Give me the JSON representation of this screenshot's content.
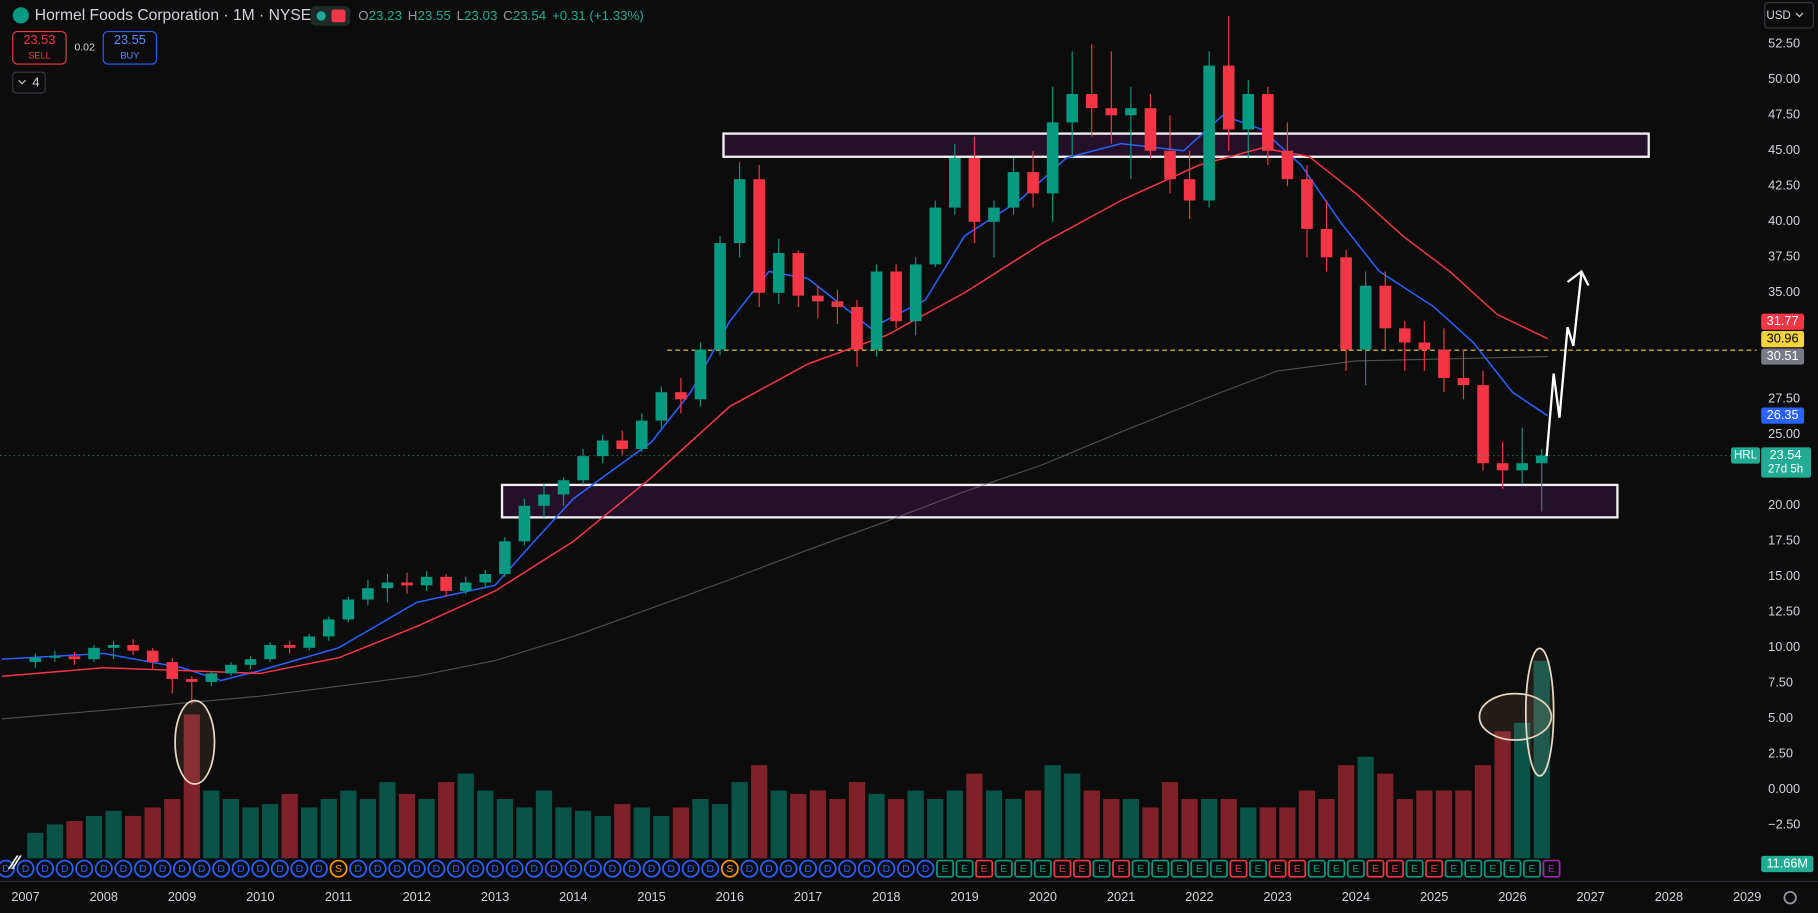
{
  "header": {
    "title": "Hormel Foods Corporation · 1M · NYSE",
    "ohlc": [
      [
        "O",
        "23.23"
      ],
      [
        "H",
        "23.55"
      ],
      [
        "L",
        "23.03"
      ],
      [
        "C",
        "23.54"
      ]
    ],
    "change": "+0.31 (+1.33%)",
    "sell": {
      "price": "23.53",
      "label": "SELL"
    },
    "spread": "0.02",
    "buy": {
      "price": "23.55",
      "label": "BUY"
    },
    "indicators": "4",
    "currency": "USD"
  },
  "chart_data": {
    "type": "candlestick",
    "symbol": "HRL",
    "countdown": "27d 5h",
    "up_color": "#089981",
    "down_color": "#f23645",
    "xlim": [
      2006.674,
      2029.12
    ],
    "ylim": [
      -6.45,
      55.6
    ],
    "xticks": [
      2007,
      2008,
      2009,
      2010,
      2011,
      2012,
      2013,
      2014,
      2015,
      2016,
      2017,
      2018,
      2019,
      2020,
      2021,
      2022,
      2023,
      2024,
      2025,
      2026,
      2027,
      2028,
      2029
    ],
    "yticks": [
      {
        "value": -2.5,
        "label": "−2.50"
      },
      {
        "value": 0,
        "label": "0.000"
      },
      {
        "value": 2.5,
        "label": "2.50"
      },
      {
        "value": 5,
        "label": "5.00"
      },
      {
        "value": 7.5,
        "label": "7.50"
      },
      {
        "value": 10,
        "label": "10.00"
      },
      {
        "value": 12.5,
        "label": "12.50"
      },
      {
        "value": 15,
        "label": "15.00"
      },
      {
        "value": 17.5,
        "label": "17.50"
      },
      {
        "value": 20,
        "label": "20.00"
      },
      {
        "value": 25,
        "label": "25.00"
      },
      {
        "value": 27.5,
        "label": "27.50"
      },
      {
        "value": 35,
        "label": "35.00"
      },
      {
        "value": 37.5,
        "label": "37.50"
      },
      {
        "value": 40,
        "label": "40.00"
      },
      {
        "value": 42.5,
        "label": "42.50"
      },
      {
        "value": 45,
        "label": "45.00"
      },
      {
        "value": 47.5,
        "label": "47.50"
      },
      {
        "value": 50,
        "label": "50.00"
      },
      {
        "value": 52.5,
        "label": "52.50"
      }
    ],
    "candles": {
      "x": [
        2007.125,
        2007.375,
        2007.625,
        2007.875,
        2008.125,
        2008.375,
        2008.625,
        2008.875,
        2009.125,
        2009.375,
        2009.625,
        2009.875,
        2010.125,
        2010.375,
        2010.625,
        2010.875,
        2011.125,
        2011.375,
        2011.625,
        2011.875,
        2012.125,
        2012.375,
        2012.625,
        2012.875,
        2013.125,
        2013.375,
        2013.625,
        2013.875,
        2014.125,
        2014.375,
        2014.625,
        2014.875,
        2015.125,
        2015.375,
        2015.625,
        2015.875,
        2016.125,
        2016.375,
        2016.625,
        2016.875,
        2017.125,
        2017.375,
        2017.625,
        2017.875,
        2018.125,
        2018.375,
        2018.625,
        2018.875,
        2019.125,
        2019.375,
        2019.625,
        2019.875,
        2020.125,
        2020.375,
        2020.625,
        2020.875,
        2021.125,
        2021.375,
        2021.625,
        2021.875,
        2022.125,
        2022.375,
        2022.625,
        2022.875,
        2023.125,
        2023.375,
        2023.625,
        2023.875,
        2024.125,
        2024.375,
        2024.625,
        2024.875,
        2025.125,
        2025.375,
        2025.625,
        2025.875,
        2026.125,
        2026.375
      ],
      "open": [
        9.0,
        9.3,
        9.4,
        9.2,
        10.0,
        10.2,
        9.8,
        9.0,
        7.8,
        7.6,
        8.2,
        8.8,
        9.2,
        10.2,
        10.0,
        10.8,
        12.0,
        13.4,
        14.2,
        14.6,
        14.4,
        15.0,
        14.0,
        14.6,
        15.2,
        17.5,
        20.0,
        20.8,
        21.8,
        23.5,
        24.6,
        24.0,
        26.0,
        28.0,
        27.5,
        31.0,
        38.5,
        43.0,
        35.0,
        37.8,
        34.8,
        34.4,
        34.0,
        31.0,
        36.5,
        33.0,
        37.0,
        41.0,
        44.5,
        40.0,
        41.0,
        43.5,
        42.0,
        47.0,
        49.0,
        48.0,
        47.5,
        48.0,
        45.0,
        43.0,
        41.5,
        51.0,
        46.5,
        49.0,
        45.0,
        43.0,
        39.5,
        37.5,
        31.0,
        35.5,
        32.5,
        31.5,
        31.0,
        29.0,
        28.5,
        23.0,
        22.5,
        23.0
      ],
      "high": [
        9.6,
        9.8,
        9.7,
        10.2,
        10.5,
        10.6,
        10.0,
        9.3,
        8.0,
        8.4,
        9.0,
        9.4,
        10.4,
        10.5,
        11.0,
        12.2,
        13.6,
        14.8,
        15.2,
        15.3,
        15.4,
        15.2,
        15.0,
        15.5,
        17.8,
        20.5,
        21.5,
        22.0,
        24.0,
        25.0,
        25.3,
        26.5,
        28.4,
        29.0,
        31.5,
        39.0,
        44.2,
        44.0,
        38.8,
        38.0,
        35.5,
        35.2,
        34.5,
        37.0,
        37.0,
        37.5,
        41.5,
        45.5,
        46.0,
        41.5,
        44.5,
        45.0,
        49.5,
        52.0,
        52.5,
        52.0,
        49.5,
        49.0,
        47.5,
        45.0,
        52.0,
        54.5,
        50.0,
        49.5,
        47.0,
        44.0,
        41.5,
        38.0,
        36.5,
        36.5,
        33.0,
        33.0,
        32.5,
        31.0,
        29.5,
        24.5,
        25.5,
        24.0
      ],
      "low": [
        8.6,
        9.0,
        8.8,
        9.0,
        9.2,
        9.5,
        8.5,
        6.8,
        6.0,
        7.3,
        8.0,
        8.5,
        9.0,
        9.6,
        9.8,
        10.5,
        11.8,
        13.0,
        13.2,
        13.8,
        14.0,
        13.6,
        13.8,
        14.2,
        15.0,
        17.2,
        19.2,
        20.0,
        21.5,
        23.0,
        23.6,
        23.8,
        25.5,
        26.5,
        27.0,
        30.6,
        37.5,
        34.0,
        34.2,
        34.0,
        33.2,
        32.8,
        29.8,
        30.5,
        32.5,
        32.0,
        36.8,
        40.5,
        38.5,
        37.5,
        40.5,
        41.0,
        40.0,
        44.5,
        46.0,
        45.5,
        43.0,
        44.5,
        42.0,
        40.2,
        41.0,
        45.0,
        44.5,
        44.0,
        42.5,
        37.5,
        36.5,
        29.5,
        28.5,
        31.0,
        29.5,
        29.5,
        28.0,
        27.5,
        22.5,
        21.2,
        21.5,
        19.6
      ],
      "close": [
        9.3,
        9.4,
        9.2,
        10.0,
        10.2,
        9.8,
        9.0,
        7.8,
        7.6,
        8.2,
        8.8,
        9.2,
        10.2,
        10.0,
        10.8,
        12.0,
        13.4,
        14.2,
        14.6,
        14.4,
        15.0,
        14.0,
        14.6,
        15.2,
        17.5,
        20.0,
        20.8,
        21.8,
        23.5,
        24.6,
        24.0,
        26.0,
        28.0,
        27.5,
        31.0,
        38.5,
        43.0,
        35.0,
        37.8,
        34.8,
        34.4,
        34.0,
        31.0,
        36.5,
        33.0,
        37.0,
        41.0,
        44.5,
        40.0,
        41.0,
        43.5,
        42.0,
        47.0,
        49.0,
        48.0,
        47.5,
        48.0,
        45.0,
        43.0,
        41.5,
        51.0,
        46.5,
        49.0,
        45.0,
        43.0,
        39.5,
        37.5,
        31.0,
        35.5,
        32.5,
        31.5,
        31.0,
        29.0,
        28.5,
        23.0,
        22.5,
        23.0,
        23.54
      ]
    },
    "volume": {
      "values": [
        1.5,
        2.0,
        2.2,
        2.5,
        2.8,
        2.5,
        3.0,
        3.5,
        8.5,
        4.0,
        3.5,
        3.0,
        3.2,
        3.8,
        3.0,
        3.5,
        4.0,
        3.5,
        4.5,
        3.8,
        3.5,
        4.5,
        5.0,
        4.0,
        3.5,
        3.0,
        4.0,
        3.0,
        2.8,
        2.5,
        3.2,
        3.0,
        2.5,
        3.0,
        3.5,
        3.2,
        4.5,
        5.5,
        4.0,
        3.8,
        4.0,
        3.5,
        4.5,
        3.8,
        3.5,
        4.0,
        3.5,
        4.0,
        5.0,
        4.0,
        3.5,
        4.0,
        5.5,
        5.0,
        4.0,
        3.5,
        3.5,
        3.0,
        4.5,
        3.5,
        3.5,
        3.5,
        3.0,
        3.0,
        3.0,
        4.0,
        3.5,
        5.5,
        6.0,
        5.0,
        3.5,
        4.0,
        4.0,
        4.0,
        5.5,
        7.5,
        8.0,
        11.66
      ],
      "value_labels": [
        null,
        null,
        null,
        null,
        null,
        null,
        null,
        null,
        null,
        null,
        null,
        null,
        null,
        null,
        null,
        null,
        null,
        null,
        null,
        null,
        null,
        null,
        null,
        null,
        null,
        null,
        null,
        null,
        null,
        null,
        null,
        null,
        null,
        null,
        null,
        null,
        null,
        null,
        null,
        null,
        null,
        null,
        null,
        null,
        null,
        null,
        null,
        null,
        null,
        null,
        null,
        null,
        null,
        null,
        null,
        null,
        null,
        null,
        null,
        null,
        null,
        null,
        null,
        null,
        null,
        null,
        null,
        null,
        null,
        null,
        null,
        null,
        null,
        null,
        null,
        null,
        null,
        "11.66M"
      ]
    },
    "series": [
      {
        "color": "#2962ff",
        "x": [
          2006.7,
          2008,
          2009,
          2009.5,
          2010,
          2011,
          2012,
          2013,
          2013.5,
          2014,
          2015,
          2015.5,
          2016,
          2016.5,
          2017,
          2017.8,
          2018.5,
          2019,
          2019.7,
          2020.3,
          2021,
          2021.8,
          2022.3,
          2022.8,
          2023.3,
          2023.8,
          2024.3,
          2025,
          2025.5,
          2026,
          2026.45
        ],
        "values": [
          9.2,
          9.6,
          8.6,
          7.7,
          8.4,
          10.0,
          13.2,
          14.4,
          17.5,
          20.5,
          24.5,
          28,
          33,
          36.5,
          36,
          32.5,
          34.5,
          39,
          41.5,
          44.5,
          45.5,
          45,
          47.5,
          46.5,
          44,
          40,
          36.5,
          34,
          31.5,
          28,
          26.35
        ]
      },
      {
        "color": "#f23645",
        "x": [
          2006.7,
          2008,
          2009,
          2010,
          2011,
          2012,
          2013,
          2014,
          2015,
          2016,
          2017,
          2018,
          2019,
          2020,
          2021,
          2022,
          2022.8,
          2023.4,
          2024,
          2024.6,
          2025.2,
          2025.8,
          2026.45
        ],
        "values": [
          8.0,
          8.6,
          8.4,
          8.2,
          9.3,
          11.5,
          14.0,
          17.5,
          22.0,
          27.0,
          30.0,
          32.0,
          35.0,
          38.5,
          41.5,
          44.0,
          45.2,
          44.6,
          42,
          39,
          36.5,
          33.5,
          31.77
        ]
      },
      {
        "color": "#787b86",
        "x": [
          2006.7,
          2008,
          2010,
          2012,
          2013,
          2014,
          2015,
          2016,
          2017,
          2018,
          2019,
          2020,
          2021,
          2022,
          2023,
          2024,
          2026.45
        ],
        "values": [
          5.0,
          5.6,
          6.6,
          8.0,
          9.1,
          10.8,
          12.8,
          14.8,
          16.9,
          18.9,
          21.0,
          22.9,
          25.2,
          27.4,
          29.5,
          30.2,
          30.51
        ]
      }
    ],
    "hline": {
      "value": 30.96,
      "start": 2015.2,
      "color": "#f5d33a"
    },
    "markers": [
      [
        2006.75,
        "D",
        "#2962ff"
      ],
      [
        2007,
        "D",
        "#2962ff"
      ],
      [
        2007.25,
        "D",
        "#2962ff"
      ],
      [
        2007.5,
        "D",
        "#2962ff"
      ],
      [
        2007.75,
        "D",
        "#2962ff"
      ],
      [
        2008,
        "D",
        "#2962ff"
      ],
      [
        2008.25,
        "D",
        "#2962ff"
      ],
      [
        2008.5,
        "D",
        "#2962ff"
      ],
      [
        2008.75,
        "D",
        "#2962ff"
      ],
      [
        2009,
        "D",
        "#2962ff"
      ],
      [
        2009.25,
        "D",
        "#2962ff"
      ],
      [
        2009.5,
        "D",
        "#2962ff"
      ],
      [
        2009.75,
        "D",
        "#2962ff"
      ],
      [
        2010,
        "D",
        "#2962ff"
      ],
      [
        2010.25,
        "D",
        "#2962ff"
      ],
      [
        2010.5,
        "D",
        "#2962ff"
      ],
      [
        2010.75,
        "D",
        "#2962ff"
      ],
      [
        2011,
        "S",
        "#ff9800"
      ],
      [
        2011.25,
        "D",
        "#2962ff"
      ],
      [
        2011.5,
        "D",
        "#2962ff"
      ],
      [
        2011.75,
        "D",
        "#2962ff"
      ],
      [
        2012,
        "D",
        "#2962ff"
      ],
      [
        2012.25,
        "D",
        "#2962ff"
      ],
      [
        2012.5,
        "D",
        "#2962ff"
      ],
      [
        2012.75,
        "D",
        "#2962ff"
      ],
      [
        2013,
        "D",
        "#2962ff"
      ],
      [
        2013.25,
        "D",
        "#2962ff"
      ],
      [
        2013.5,
        "D",
        "#2962ff"
      ],
      [
        2013.75,
        "D",
        "#2962ff"
      ],
      [
        2014,
        "D",
        "#2962ff"
      ],
      [
        2014.25,
        "D",
        "#2962ff"
      ],
      [
        2014.5,
        "D",
        "#2962ff"
      ],
      [
        2014.75,
        "D",
        "#2962ff"
      ],
      [
        2015,
        "D",
        "#2962ff"
      ],
      [
        2015.25,
        "D",
        "#2962ff"
      ],
      [
        2015.5,
        "D",
        "#2962ff"
      ],
      [
        2015.75,
        "D",
        "#2962ff"
      ],
      [
        2016,
        "S",
        "#ff9800"
      ],
      [
        2016.25,
        "D",
        "#2962ff"
      ],
      [
        2016.5,
        "D",
        "#2962ff"
      ],
      [
        2016.75,
        "D",
        "#2962ff"
      ],
      [
        2017,
        "D",
        "#2962ff"
      ],
      [
        2017.25,
        "D",
        "#2962ff"
      ],
      [
        2017.5,
        "D",
        "#2962ff"
      ],
      [
        2017.75,
        "D",
        "#2962ff"
      ],
      [
        2018,
        "D",
        "#2962ff"
      ],
      [
        2018.25,
        "D",
        "#2962ff"
      ],
      [
        2018.5,
        "D",
        "#2962ff"
      ],
      [
        2018.75,
        "E",
        "#089981"
      ],
      [
        2019,
        "E",
        "#089981"
      ],
      [
        2019.25,
        "E",
        "#f23645"
      ],
      [
        2019.5,
        "E",
        "#089981"
      ],
      [
        2019.75,
        "E",
        "#089981"
      ],
      [
        2020,
        "E",
        "#089981"
      ],
      [
        2020.25,
        "E",
        "#f23645"
      ],
      [
        2020.5,
        "E",
        "#f23645"
      ],
      [
        2020.75,
        "E",
        "#089981"
      ],
      [
        2021,
        "E",
        "#f23645"
      ],
      [
        2021.25,
        "E",
        "#089981"
      ],
      [
        2021.5,
        "E",
        "#089981"
      ],
      [
        2021.75,
        "E",
        "#089981"
      ],
      [
        2022,
        "E",
        "#089981"
      ],
      [
        2022.25,
        "E",
        "#089981"
      ],
      [
        2022.5,
        "E",
        "#f23645"
      ],
      [
        2022.75,
        "E",
        "#089981"
      ],
      [
        2023,
        "E",
        "#f23645"
      ],
      [
        2023.25,
        "E",
        "#f23645"
      ],
      [
        2023.5,
        "E",
        "#089981"
      ],
      [
        2023.75,
        "E",
        "#089981"
      ],
      [
        2024,
        "E",
        "#089981"
      ],
      [
        2024.25,
        "E",
        "#f23645"
      ],
      [
        2024.5,
        "E",
        "#f23645"
      ],
      [
        2024.75,
        "E",
        "#089981"
      ],
      [
        2025,
        "E",
        "#f23645"
      ],
      [
        2025.25,
        "E",
        "#089981"
      ],
      [
        2025.5,
        "E",
        "#089981"
      ],
      [
        2025.75,
        "E",
        "#089981"
      ],
      [
        2026,
        "E",
        "#089981"
      ],
      [
        2026.25,
        "E",
        "#089981"
      ],
      [
        2026.5,
        "E",
        "#9c27b0"
      ]
    ]
  }
}
